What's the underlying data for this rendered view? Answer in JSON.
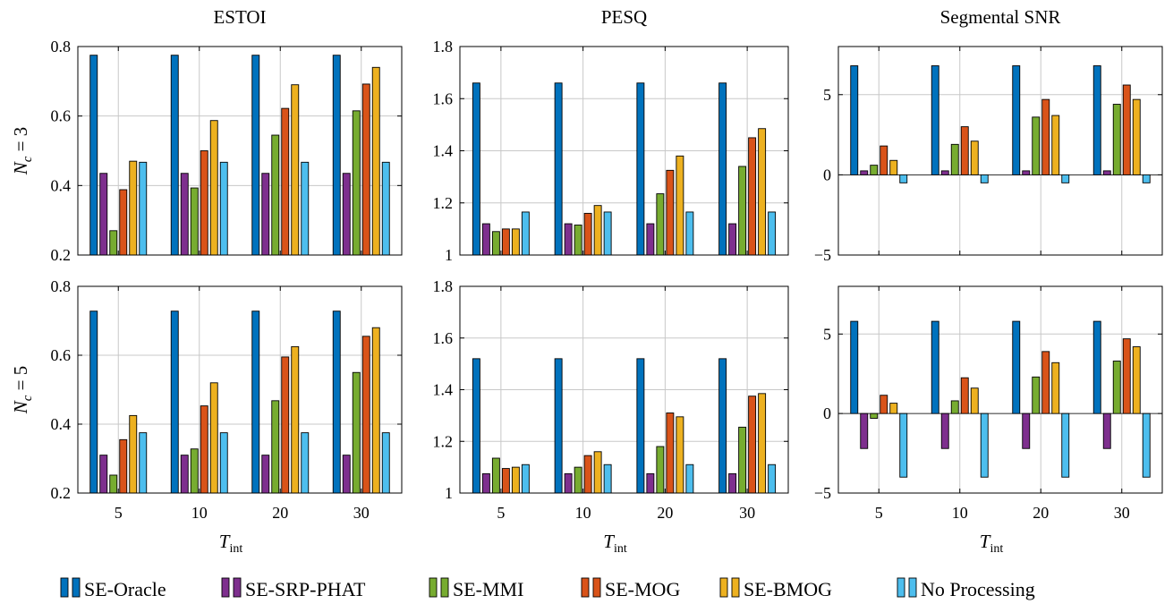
{
  "chart_data": [
    {
      "type": "bar",
      "title": "ESTOI",
      "ylabel": "N_c = 3",
      "ylabel_main": "N",
      "ylabel_sub": "c",
      "ylabel_rest": " = 3",
      "xlabel": "",
      "categories": [
        "5",
        "10",
        "20",
        "30"
      ],
      "ylim": [
        0.2,
        0.8
      ],
      "yticks": [
        "0.2",
        "0.4",
        "0.6",
        "0.8"
      ],
      "ytick_values": [
        0.2,
        0.4,
        0.6,
        0.8
      ],
      "series": [
        {
          "name": "SE-Oracle",
          "values": [
            0.775,
            0.775,
            0.775,
            0.775
          ]
        },
        {
          "name": "SE-SRP-PHAT",
          "values": [
            0.435,
            0.435,
            0.435,
            0.435
          ]
        },
        {
          "name": "SE-MMI",
          "values": [
            0.27,
            0.393,
            0.545,
            0.615
          ]
        },
        {
          "name": "SE-MOG",
          "values": [
            0.388,
            0.5,
            0.622,
            0.692
          ]
        },
        {
          "name": "SE-BMOG",
          "values": [
            0.47,
            0.587,
            0.69,
            0.74
          ]
        },
        {
          "name": "No Processing",
          "values": [
            0.467,
            0.467,
            0.467,
            0.467
          ]
        }
      ]
    },
    {
      "type": "bar",
      "title": "PESQ",
      "xlabel": "",
      "categories": [
        "5",
        "10",
        "20",
        "30"
      ],
      "ylim": [
        1,
        1.8
      ],
      "yticks": [
        "1",
        "1.2",
        "1.4",
        "1.6",
        "1.8"
      ],
      "ytick_values": [
        1,
        1.2,
        1.4,
        1.6,
        1.8
      ],
      "series": [
        {
          "name": "SE-Oracle",
          "values": [
            1.66,
            1.66,
            1.66,
            1.66
          ]
        },
        {
          "name": "SE-SRP-PHAT",
          "values": [
            1.12,
            1.12,
            1.12,
            1.12
          ]
        },
        {
          "name": "SE-MMI",
          "values": [
            1.09,
            1.115,
            1.235,
            1.34
          ]
        },
        {
          "name": "SE-MOG",
          "values": [
            1.1,
            1.16,
            1.325,
            1.45
          ]
        },
        {
          "name": "SE-BMOG",
          "values": [
            1.1,
            1.19,
            1.38,
            1.485
          ]
        },
        {
          "name": "No Processing",
          "values": [
            1.165,
            1.165,
            1.165,
            1.165
          ]
        }
      ]
    },
    {
      "type": "bar",
      "title": "Segmental SNR",
      "xlabel": "",
      "categories": [
        "5",
        "10",
        "20",
        "30"
      ],
      "ylim": [
        -5,
        8
      ],
      "yticks": [
        "−5",
        "0",
        "5"
      ],
      "ytick_values": [
        -5,
        0,
        5
      ],
      "series": [
        {
          "name": "SE-Oracle",
          "values": [
            6.8,
            6.8,
            6.8,
            6.8
          ]
        },
        {
          "name": "SE-SRP-PHAT",
          "values": [
            0.25,
            0.25,
            0.25,
            0.25
          ]
        },
        {
          "name": "SE-MMI",
          "values": [
            0.6,
            1.9,
            3.6,
            4.4
          ]
        },
        {
          "name": "SE-MOG",
          "values": [
            1.8,
            3.0,
            4.7,
            5.6
          ]
        },
        {
          "name": "SE-BMOG",
          "values": [
            0.9,
            2.1,
            3.7,
            4.7
          ]
        },
        {
          "name": "No Processing",
          "values": [
            -0.5,
            -0.5,
            -0.5,
            -0.5
          ]
        }
      ]
    },
    {
      "type": "bar",
      "ylabel": "N_c = 5",
      "ylabel_main": "N",
      "ylabel_sub": "c",
      "ylabel_rest": " = 5",
      "xlabel": "T_int",
      "xlabel_main": "T",
      "xlabel_sub": "int",
      "categories": [
        "5",
        "10",
        "20",
        "30"
      ],
      "xticks": [
        "5",
        "10",
        "20",
        "30"
      ],
      "ylim": [
        0.2,
        0.8
      ],
      "yticks": [
        "0.2",
        "0.4",
        "0.6",
        "0.8"
      ],
      "ytick_values": [
        0.2,
        0.4,
        0.6,
        0.8
      ],
      "series": [
        {
          "name": "SE-Oracle",
          "values": [
            0.728,
            0.728,
            0.728,
            0.728
          ]
        },
        {
          "name": "SE-SRP-PHAT",
          "values": [
            0.31,
            0.31,
            0.31,
            0.31
          ]
        },
        {
          "name": "SE-MMI",
          "values": [
            0.252,
            0.328,
            0.468,
            0.55
          ]
        },
        {
          "name": "SE-MOG",
          "values": [
            0.355,
            0.453,
            0.595,
            0.655
          ]
        },
        {
          "name": "SE-BMOG",
          "values": [
            0.425,
            0.52,
            0.625,
            0.68
          ]
        },
        {
          "name": "No Processing",
          "values": [
            0.375,
            0.375,
            0.375,
            0.375
          ]
        }
      ]
    },
    {
      "type": "bar",
      "xlabel": "T_int",
      "xlabel_main": "T",
      "xlabel_sub": "int",
      "categories": [
        "5",
        "10",
        "20",
        "30"
      ],
      "xticks": [
        "5",
        "10",
        "20",
        "30"
      ],
      "ylim": [
        1,
        1.8
      ],
      "yticks": [
        "1",
        "1.2",
        "1.4",
        "1.6",
        "1.8"
      ],
      "ytick_values": [
        1,
        1.2,
        1.4,
        1.6,
        1.8
      ],
      "series": [
        {
          "name": "SE-Oracle",
          "values": [
            1.52,
            1.52,
            1.52,
            1.52
          ]
        },
        {
          "name": "SE-SRP-PHAT",
          "values": [
            1.075,
            1.075,
            1.075,
            1.075
          ]
        },
        {
          "name": "SE-MMI",
          "values": [
            1.135,
            1.1,
            1.18,
            1.255
          ]
        },
        {
          "name": "SE-MOG",
          "values": [
            1.095,
            1.145,
            1.31,
            1.375
          ]
        },
        {
          "name": "SE-BMOG",
          "values": [
            1.1,
            1.16,
            1.295,
            1.385
          ]
        },
        {
          "name": "No Processing",
          "values": [
            1.11,
            1.11,
            1.11,
            1.11
          ]
        }
      ]
    },
    {
      "type": "bar",
      "xlabel": "T_int",
      "xlabel_main": "T",
      "xlabel_sub": "int",
      "categories": [
        "5",
        "10",
        "20",
        "30"
      ],
      "xticks": [
        "5",
        "10",
        "20",
        "30"
      ],
      "ylim": [
        -5,
        8
      ],
      "yticks": [
        "−5",
        "0",
        "5"
      ],
      "ytick_values": [
        -5,
        0,
        5
      ],
      "series": [
        {
          "name": "SE-Oracle",
          "values": [
            5.8,
            5.8,
            5.8,
            5.8
          ]
        },
        {
          "name": "SE-SRP-PHAT",
          "values": [
            -2.2,
            -2.2,
            -2.2,
            -2.2
          ]
        },
        {
          "name": "SE-MMI",
          "values": [
            -0.3,
            0.8,
            2.3,
            3.3
          ]
        },
        {
          "name": "SE-MOG",
          "values": [
            1.15,
            2.25,
            3.9,
            4.7
          ]
        },
        {
          "name": "SE-BMOG",
          "values": [
            0.65,
            1.6,
            3.2,
            4.2
          ]
        },
        {
          "name": "No Processing",
          "values": [
            -4.0,
            -4.0,
            -4.0,
            -4.0
          ]
        }
      ]
    }
  ],
  "legend": {
    "placement": "bottom",
    "items": [
      {
        "name": "SE-Oracle",
        "color": "#0072bd"
      },
      {
        "name": "SE-SRP-PHAT",
        "color": "#7e2f8e"
      },
      {
        "name": "SE-MMI",
        "color": "#77ac30"
      },
      {
        "name": "SE-MOG",
        "color": "#d95319"
      },
      {
        "name": "SE-BMOG",
        "color": "#edb120"
      },
      {
        "name": "No Processing",
        "color": "#4dbeee"
      }
    ]
  },
  "grid": true
}
